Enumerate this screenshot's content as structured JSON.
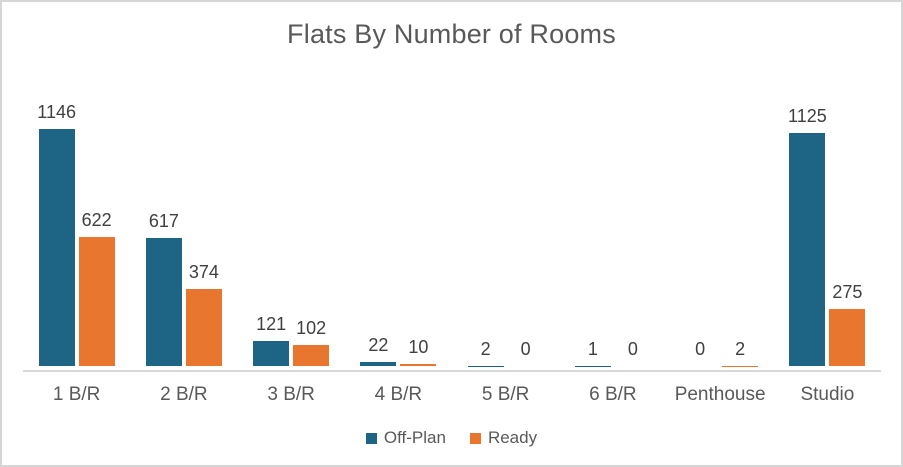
{
  "chart_data": {
    "type": "bar",
    "title": "Flats By Number of Rooms",
    "categories": [
      "1 B/R",
      "2 B/R",
      "3 B/R",
      "4 B/R",
      "5 B/R",
      "6 B/R",
      "Penthouse",
      "Studio"
    ],
    "series": [
      {
        "name": "Off-Plan",
        "color": "#1E6585",
        "values": [
          1146,
          617,
          121,
          22,
          2,
          1,
          0,
          1125
        ]
      },
      {
        "name": "Ready",
        "color": "#E8762F",
        "values": [
          622,
          374,
          102,
          10,
          0,
          0,
          2,
          275
        ]
      }
    ],
    "ylim": [
      0,
      1146
    ],
    "xlabel": "",
    "ylabel": "",
    "grid": false,
    "data_labels": true,
    "legend_position": "bottom"
  },
  "colors": {
    "off_plan": "#1E6585",
    "ready": "#E8762F",
    "axis_line": "#D9D9D9",
    "label_text": "#404040",
    "secondary_text": "#595959",
    "canvas_border": "#D6D6D6",
    "background": "#FFFFFF"
  }
}
